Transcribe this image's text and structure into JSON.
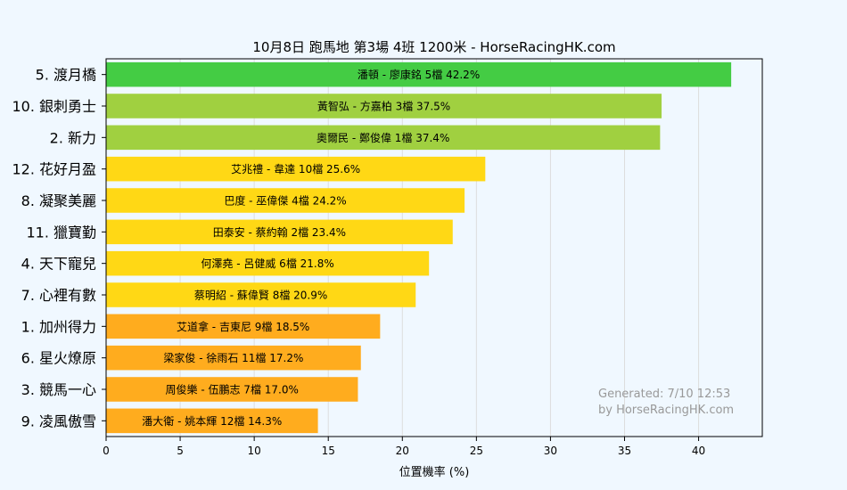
{
  "chart_data": {
    "type": "bar",
    "orientation": "horizontal",
    "title": "10月8日  跑馬地  第3場  4班  1200米 - HorseRacingHK.com",
    "xlabel": "位置機率 (%)",
    "ylabel": "",
    "xlim": [
      0,
      44.3
    ],
    "xticks": [
      0,
      5,
      10,
      15,
      20,
      25,
      30,
      35,
      40
    ],
    "grid": true,
    "categories": [
      "5. 渡月橋",
      "10. 銀刺勇士",
      "2. 新力",
      "12. 花好月盈",
      "8. 凝聚美麗",
      "11. 獵寶勤",
      "4. 天下寵兒",
      "7. 心裡有數",
      "1. 加州得力",
      "6. 星火燎原",
      "3. 競馬一心",
      "9. 凌風傲雪"
    ],
    "values": [
      42.2,
      37.5,
      37.4,
      25.6,
      24.2,
      23.4,
      21.8,
      20.9,
      18.5,
      17.2,
      17.0,
      14.3
    ],
    "bar_labels": [
      "潘頓 - 廖康銘 5檔  42.2%",
      "黃智弘 - 方嘉柏 3檔  37.5%",
      "奧爾民 - 鄭俊偉 1檔  37.4%",
      "艾兆禮 - 韋達 10檔  25.6%",
      "巴度 - 巫偉傑 4檔  24.2%",
      "田泰安 - 蔡約翰 2檔  23.4%",
      "何澤堯 - 呂健威 6檔  21.8%",
      "蔡明紹 - 蘇偉賢 8檔  20.9%",
      "艾道拿 - 吉東尼 9檔  18.5%",
      "梁家俊 - 徐雨石 11檔  17.2%",
      "周俊樂 - 伍鵬志 7檔  17.0%",
      "潘大衛 - 姚本輝 12檔  14.3%"
    ],
    "colors": [
      "#44cc44",
      "#a0d040",
      "#a0d040",
      "#ffd815",
      "#ffd815",
      "#ffd815",
      "#ffd815",
      "#ffd815",
      "#ffac1e",
      "#ffac1e",
      "#ffac1e",
      "#ffac1e"
    ],
    "watermark": [
      "Generated: 7/10 12:53",
      "by HorseRacingHK.com"
    ]
  },
  "colors": {
    "background": "#f0f8ff",
    "grid": "#dddddd",
    "axis": "#000000",
    "watermark": "#999999"
  }
}
